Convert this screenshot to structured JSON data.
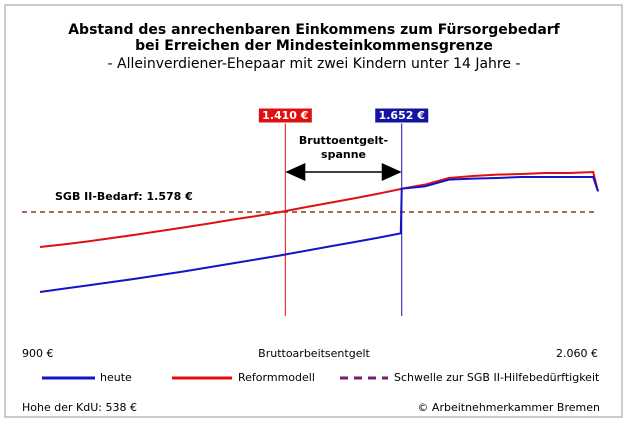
{
  "chart_data": {
    "type": "line",
    "title": [
      "Abstand des anrechenbaren Einkommens zum Fürsorgebedarf",
      "bei Erreichen der Mindesteinkommensgrenze"
    ],
    "subtitle": "- Alleinverdiener-Ehepaar mit zwei Kindern unter 14 Jahre -",
    "xlabel": "Bruttoarbeitsentgelt",
    "x": [
      900,
      950,
      1000,
      1050,
      1100,
      1150,
      1200,
      1250,
      1300,
      1350,
      1400,
      1450,
      1500,
      1550,
      1600,
      1650,
      1652,
      1700,
      1750,
      1800,
      1850,
      1900,
      1950,
      2000,
      2050,
      2060
    ],
    "series": [
      {
        "name": "heute",
        "color": "#1414c8",
        "values": [
          1338,
          1348,
          1358,
          1368,
          1378,
          1389,
          1400,
          1412,
          1424,
          1436,
          1448,
          1461,
          1474,
          1487,
          1500,
          1514,
          1648,
          1655,
          1675,
          1678,
          1680,
          1683,
          1683,
          1683,
          1683,
          1640
        ]
      },
      {
        "name": "Reformmodell",
        "color": "#e01010",
        "values": [
          1473,
          1481,
          1490,
          1500,
          1510,
          1521,
          1532,
          1543,
          1555,
          1566,
          1578,
          1592,
          1605,
          1618,
          1632,
          1647,
          1648,
          1660,
          1680,
          1686,
          1690,
          1692,
          1695,
          1695,
          1698,
          1640
        ]
      }
    ],
    "threshold": {
      "name": "Schwelle zur SGB II-Hilfebedürftigkeit",
      "value": 1578,
      "label": "SGB II-Bedarf: 1.578 €",
      "color": "#8b3a1a",
      "legend_color": "#7a1a6a"
    },
    "markers": [
      {
        "value": 1410,
        "label": "1.410 €",
        "color": "#e01010"
      },
      {
        "value": 1652,
        "label": "1.652 €",
        "color": "#1414a0"
      }
    ],
    "annotation": [
      "Bruttoentgelt-",
      "spanne"
    ],
    "xlim": [
      900,
      2060
    ],
    "xticks": [
      {
        "value": 900,
        "label": "900 €"
      },
      {
        "value": 2060,
        "label": "2.060 €"
      }
    ],
    "ylim": [
      1200,
      1800
    ],
    "footer_left": "Hohe der KdU: 538 €",
    "footer_right": "© Arbeitnehmerkammer Bremen"
  }
}
